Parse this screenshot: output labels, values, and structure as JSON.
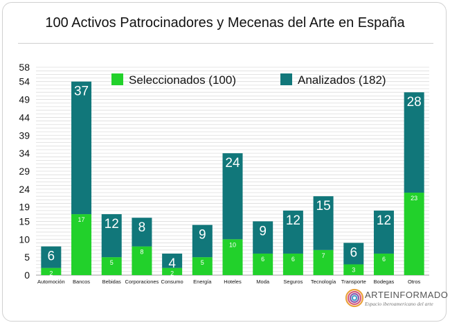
{
  "chart_data": {
    "type": "bar",
    "stacked": true,
    "title": "100 Activos Patrocinadores y Mecenas del Arte en España",
    "categories": [
      "Automoción",
      "Bancos",
      "Bebidas",
      "Corporaciones",
      "Consumo",
      "Energía",
      "Hoteles",
      "Moda",
      "Seguros",
      "Tecnología",
      "Transporte",
      "Bodegas",
      "Otros"
    ],
    "series": [
      {
        "name": "Seleccionados (100)",
        "color": "#22d12b",
        "values": [
          2,
          17,
          5,
          8,
          2,
          5,
          10,
          6,
          6,
          7,
          3,
          6,
          23
        ]
      },
      {
        "name": "Analizados (182)",
        "color": "#11777a",
        "values": [
          6,
          37,
          12,
          8,
          4,
          9,
          24,
          9,
          12,
          15,
          6,
          12,
          28
        ]
      }
    ],
    "yticks": [
      0,
      5,
      10,
      15,
      19,
      24,
      29,
      34,
      39,
      44,
      49,
      54,
      58
    ],
    "ylim": [
      0,
      58
    ],
    "grid": true,
    "legend_position": "top"
  },
  "logo": {
    "name": "ARTEINFORMADO",
    "tagline": "Espacio iberoamericano del arte"
  }
}
